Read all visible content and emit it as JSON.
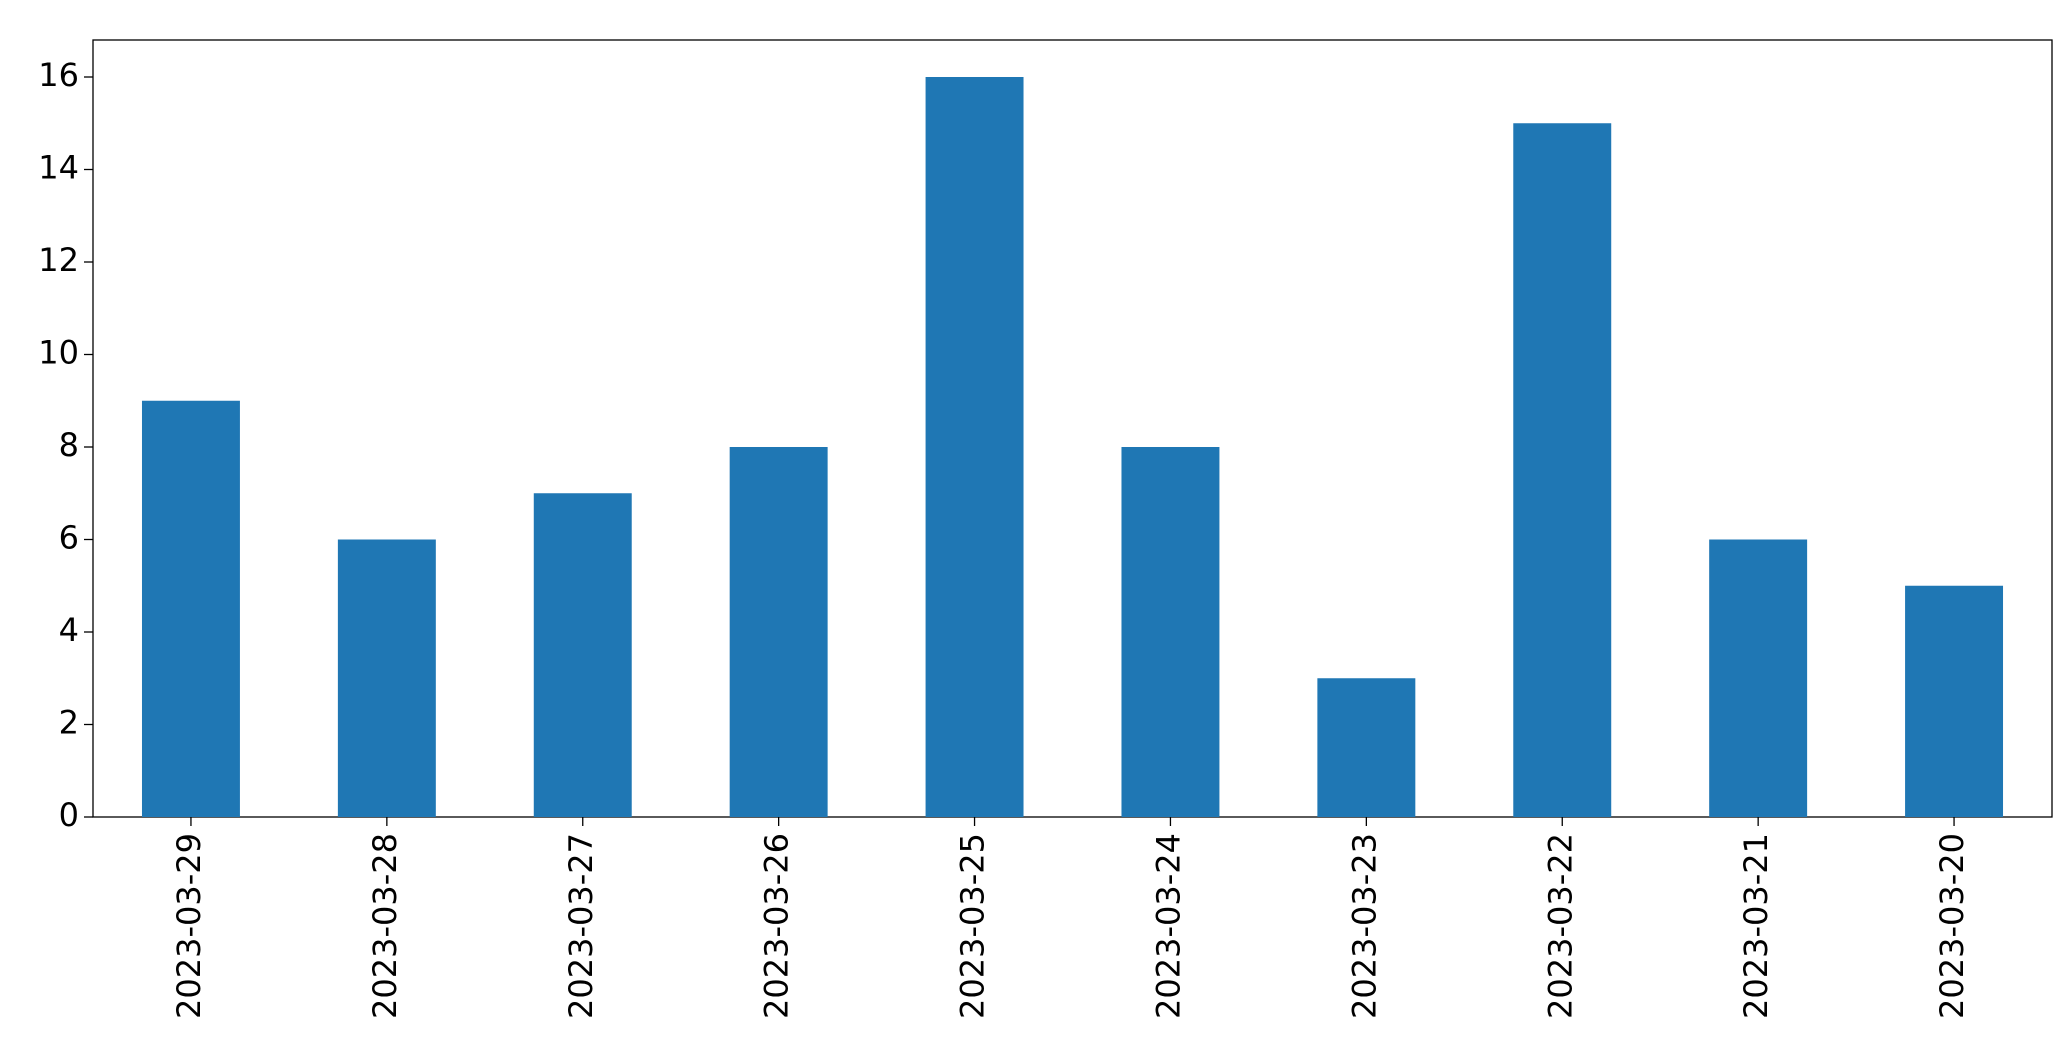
{
  "chart_data": {
    "type": "bar",
    "categories": [
      "2023-03-29",
      "2023-03-28",
      "2023-03-27",
      "2023-03-26",
      "2023-03-25",
      "2023-03-24",
      "2023-03-23",
      "2023-03-22",
      "2023-03-21",
      "2023-03-20"
    ],
    "values": [
      9,
      6,
      7,
      8,
      16,
      8,
      3,
      15,
      6,
      5
    ],
    "color": "#1f77b4",
    "ylim": [
      0,
      16.8
    ],
    "yticks": [
      0,
      2,
      4,
      6,
      8,
      10,
      12,
      14,
      16
    ],
    "grid": false
  }
}
